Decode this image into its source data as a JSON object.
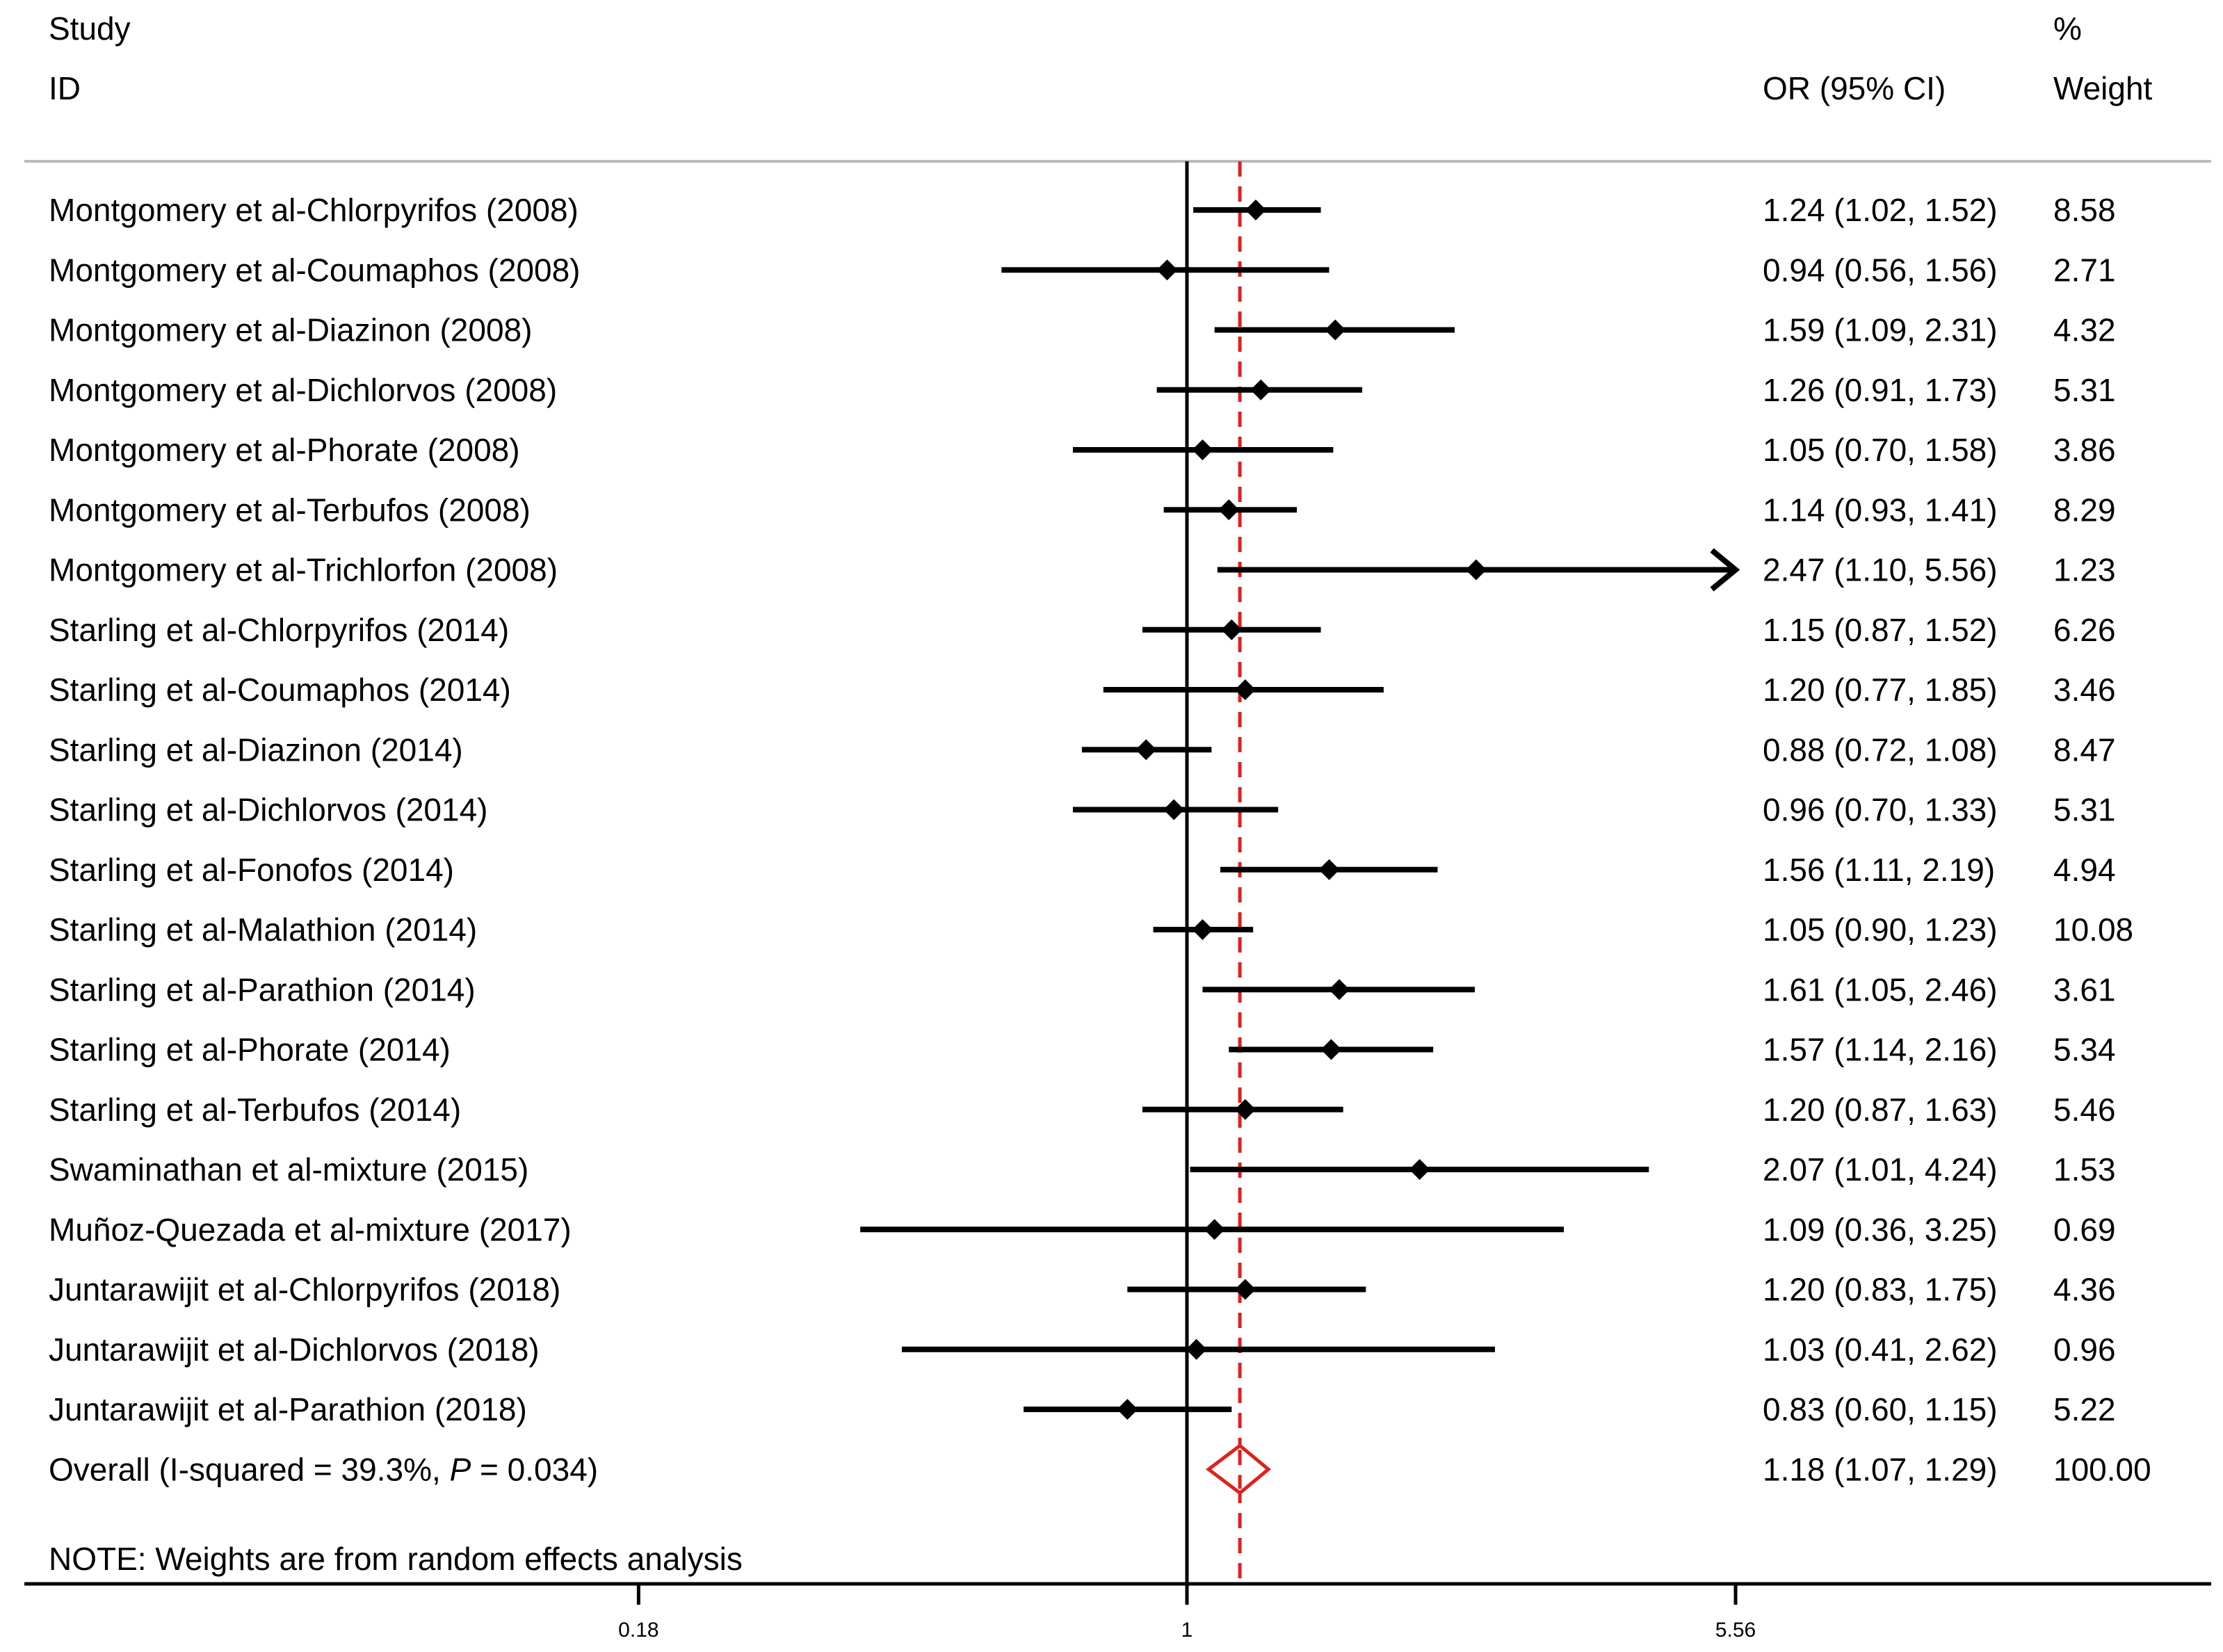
{
  "chart_data": {
    "type": "forest",
    "header": {
      "study_line1": "Study",
      "study_line2": "ID",
      "or_label": "OR (95% CI)",
      "weight_line1": "%",
      "weight_line2": "Weight"
    },
    "x_scale": "log",
    "xlim": [
      0.18,
      5.56
    ],
    "x_ticks": [
      "0.18",
      "1",
      "5.56"
    ],
    "null_line": 1,
    "studies": [
      {
        "label": "Montgomery et al-Chlorpyrifos (2008)",
        "or": 1.24,
        "lo": 1.02,
        "hi": 1.52,
        "ci_text": "1.24 (1.02, 1.52)",
        "weight": "8.58"
      },
      {
        "label": "Montgomery et al-Coumaphos (2008)",
        "or": 0.94,
        "lo": 0.56,
        "hi": 1.56,
        "ci_text": "0.94 (0.56, 1.56)",
        "weight": "2.71"
      },
      {
        "label": "Montgomery et al-Diazinon (2008)",
        "or": 1.59,
        "lo": 1.09,
        "hi": 2.31,
        "ci_text": "1.59 (1.09, 2.31)",
        "weight": "4.32"
      },
      {
        "label": "Montgomery et al-Dichlorvos (2008)",
        "or": 1.26,
        "lo": 0.91,
        "hi": 1.73,
        "ci_text": "1.26 (0.91, 1.73)",
        "weight": "5.31"
      },
      {
        "label": "Montgomery et al-Phorate (2008)",
        "or": 1.05,
        "lo": 0.7,
        "hi": 1.58,
        "ci_text": "1.05 (0.70, 1.58)",
        "weight": "3.86"
      },
      {
        "label": "Montgomery et al-Terbufos (2008)",
        "or": 1.14,
        "lo": 0.93,
        "hi": 1.41,
        "ci_text": "1.14 (0.93, 1.41)",
        "weight": "8.29"
      },
      {
        "label": "Montgomery et al-Trichlorfon (2008)",
        "or": 2.47,
        "lo": 1.1,
        "hi": 5.56,
        "ci_text": "2.47 (1.10, 5.56)",
        "weight": "1.23",
        "arrow": true
      },
      {
        "label": "Starling et al-Chlorpyrifos (2014)",
        "or": 1.15,
        "lo": 0.87,
        "hi": 1.52,
        "ci_text": "1.15 (0.87, 1.52)",
        "weight": "6.26"
      },
      {
        "label": "Starling et al-Coumaphos (2014)",
        "or": 1.2,
        "lo": 0.77,
        "hi": 1.85,
        "ci_text": "1.20 (0.77, 1.85)",
        "weight": "3.46"
      },
      {
        "label": "Starling et al-Diazinon (2014)",
        "or": 0.88,
        "lo": 0.72,
        "hi": 1.08,
        "ci_text": "0.88 (0.72, 1.08)",
        "weight": "8.47"
      },
      {
        "label": "Starling et al-Dichlorvos (2014)",
        "or": 0.96,
        "lo": 0.7,
        "hi": 1.33,
        "ci_text": "0.96 (0.70, 1.33)",
        "weight": "5.31"
      },
      {
        "label": "Starling et al-Fonofos (2014)",
        "or": 1.56,
        "lo": 1.11,
        "hi": 2.19,
        "ci_text": "1.56 (1.11, 2.19)",
        "weight": "4.94"
      },
      {
        "label": "Starling et al-Malathion (2014)",
        "or": 1.05,
        "lo": 0.9,
        "hi": 1.23,
        "ci_text": "1.05 (0.90, 1.23)",
        "weight": "10.08"
      },
      {
        "label": "Starling et al-Parathion (2014)",
        "or": 1.61,
        "lo": 1.05,
        "hi": 2.46,
        "ci_text": "1.61 (1.05, 2.46)",
        "weight": "3.61"
      },
      {
        "label": "Starling et al-Phorate (2014)",
        "or": 1.57,
        "lo": 1.14,
        "hi": 2.16,
        "ci_text": "1.57 (1.14, 2.16)",
        "weight": "5.34"
      },
      {
        "label": "Starling et al-Terbufos (2014)",
        "or": 1.2,
        "lo": 0.87,
        "hi": 1.63,
        "ci_text": "1.20 (0.87, 1.63)",
        "weight": "5.46"
      },
      {
        "label": "Swaminathan et al-mixture (2015)",
        "or": 2.07,
        "lo": 1.01,
        "hi": 4.24,
        "ci_text": "2.07 (1.01, 4.24)",
        "weight": "1.53"
      },
      {
        "label": "Muñoz-Quezada et al-mixture (2017)",
        "or": 1.09,
        "lo": 0.36,
        "hi": 3.25,
        "ci_text": "1.09 (0.36, 3.25)",
        "weight": "0.69"
      },
      {
        "label": "Juntarawijit et al-Chlorpyrifos (2018)",
        "or": 1.2,
        "lo": 0.83,
        "hi": 1.75,
        "ci_text": "1.20 (0.83, 1.75)",
        "weight": "4.36"
      },
      {
        "label": "Juntarawijit et al-Dichlorvos (2018)",
        "or": 1.03,
        "lo": 0.41,
        "hi": 2.62,
        "ci_text": "1.03 (0.41, 2.62)",
        "weight": "0.96"
      },
      {
        "label": "Juntarawijit et al-Parathion (2018)",
        "or": 0.83,
        "lo": 0.6,
        "hi": 1.15,
        "ci_text": "0.83 (0.60, 1.15)",
        "weight": "5.22"
      }
    ],
    "overall": {
      "label_prefix": "Overall  (I-squared = 39.3%, ",
      "p_symbol": "P",
      "p_rest": " = 0.034)",
      "or": 1.18,
      "lo": 1.07,
      "hi": 1.29,
      "ci_text": "1.18 (1.07, 1.29)",
      "weight": "100.00"
    },
    "note": "NOTE: Weights are from random effects analysis",
    "colors": {
      "ink": "#000000",
      "overall": "#e0201c",
      "divider": "#bbbbbb"
    }
  }
}
